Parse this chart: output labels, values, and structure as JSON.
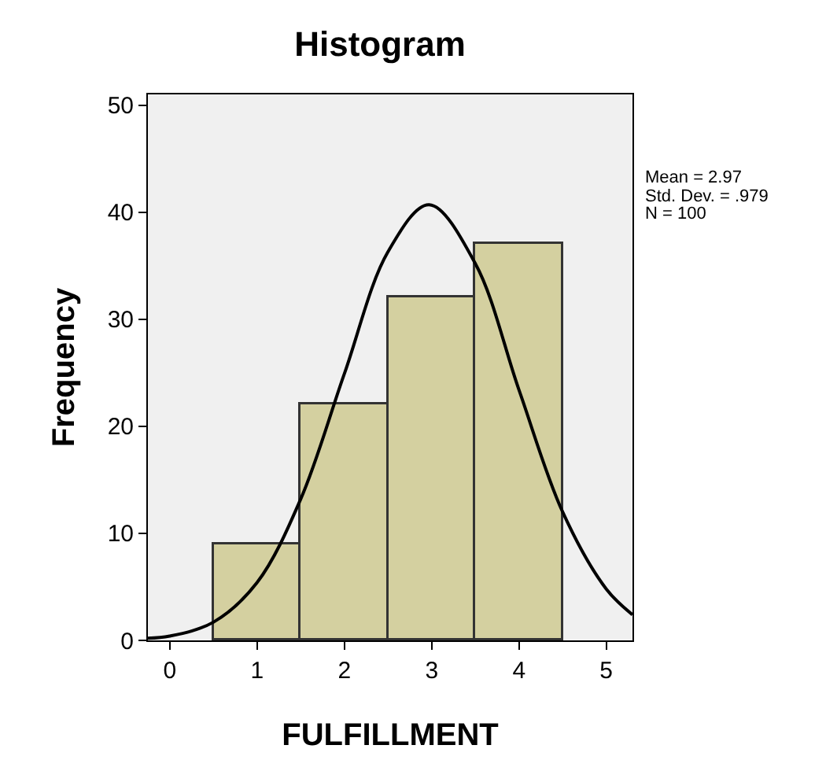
{
  "chart_data": {
    "type": "histogram",
    "title": "Histogram",
    "xlabel": "FULFILLMENT",
    "ylabel": "Frequency",
    "bins": [
      0.5,
      1.5,
      2.5,
      3.5,
      4.5
    ],
    "values": [
      9,
      22,
      32,
      37
    ],
    "color": "#d4d0a0",
    "series": [
      {
        "type": "line",
        "color": "#000000",
        "x": [
          -0.25,
          0,
          0.5,
          1,
          1.5,
          2,
          2.5,
          2.97,
          3.5,
          4,
          4.5,
          5,
          5.3
        ],
        "values": [
          0.2,
          0.4,
          1.7,
          5.4,
          13.2,
          24.9,
          36.3,
          40.7,
          35.2,
          23.4,
          12,
          4.8,
          2.4
        ]
      }
    ],
    "xlim": [
      -0.25,
      5.3
    ],
    "xticks": [
      0,
      1,
      2,
      3,
      4,
      5
    ],
    "ylim": [
      0,
      51
    ],
    "yticks": [
      0,
      10,
      20,
      30,
      40,
      50
    ],
    "grid": false,
    "marker": "none",
    "line_style": "solid",
    "annotations": [
      "Mean = 2.97",
      "Std. Dev. = .979",
      "N = 100"
    ]
  }
}
